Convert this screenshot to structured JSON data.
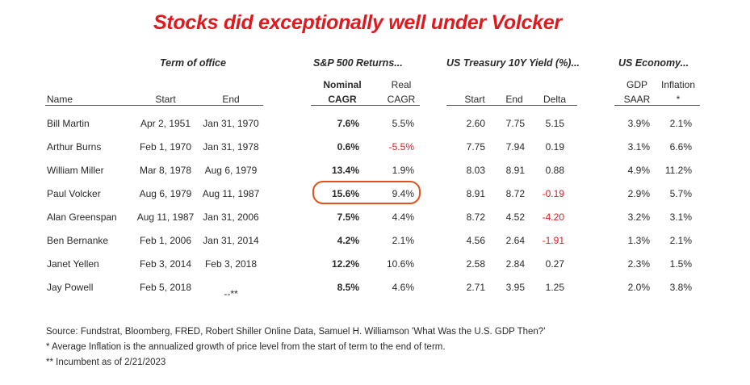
{
  "title": "Stocks did exceptionally well under Volcker",
  "groups": {
    "term": "Term of office",
    "sp500": "S&P 500 Returns...",
    "treasury": "US Treasury 10Y Yield (%)...",
    "economy": "US Economy..."
  },
  "headers": {
    "name": "Name",
    "start": "Start",
    "end": "End",
    "nominal_1": "Nominal",
    "nominal_2": "CAGR",
    "real_1": "Real",
    "real_2": "CAGR",
    "t_start": "Start",
    "t_end": "End",
    "t_delta": "Delta",
    "gdp_1": "GDP",
    "gdp_2": "SAAR",
    "infl_1": "Inflation",
    "infl_2": "*"
  },
  "rows": [
    {
      "name": "Bill Martin",
      "start": "Apr 2, 1951",
      "end": "Jan 31, 1970",
      "nominal": "7.6%",
      "real": "5.5%",
      "ty_start": "2.60",
      "ty_end": "7.75",
      "delta": "5.15",
      "gdp": "3.9%",
      "inflation": "2.1%"
    },
    {
      "name": "Arthur Burns",
      "start": "Feb 1, 1970",
      "end": "Jan 31, 1978",
      "nominal": "0.6%",
      "real": "-5.5%",
      "ty_start": "7.75",
      "ty_end": "7.94",
      "delta": "0.19",
      "gdp": "3.1%",
      "inflation": "6.6%"
    },
    {
      "name": "William Miller",
      "start": "Mar 8, 1978",
      "end": "Aug 6, 1979",
      "nominal": "13.4%",
      "real": "1.9%",
      "ty_start": "8.03",
      "ty_end": "8.91",
      "delta": "0.88",
      "gdp": "4.9%",
      "inflation": "11.2%"
    },
    {
      "name": "Paul Volcker",
      "start": "Aug 6, 1979",
      "end": "Aug 11, 1987",
      "nominal": "15.6%",
      "real": "9.4%",
      "ty_start": "8.91",
      "ty_end": "8.72",
      "delta": "-0.19",
      "gdp": "2.9%",
      "inflation": "5.7%"
    },
    {
      "name": "Alan Greenspan",
      "start": "Aug 11, 1987",
      "end": "Jan 31, 2006",
      "nominal": "7.5%",
      "real": "4.4%",
      "ty_start": "8.72",
      "ty_end": "4.52",
      "delta": "-4.20",
      "gdp": "3.2%",
      "inflation": "3.1%"
    },
    {
      "name": "Ben Bernanke",
      "start": "Feb 1, 2006",
      "end": "Jan 31, 2014",
      "nominal": "4.2%",
      "real": "2.1%",
      "ty_start": "4.56",
      "ty_end": "2.64",
      "delta": "-1.91",
      "gdp": "1.3%",
      "inflation": "2.1%"
    },
    {
      "name": "Janet Yellen",
      "start": "Feb 3, 2014",
      "end": "Feb 3, 2018",
      "nominal": "12.2%",
      "real": "10.6%",
      "ty_start": "2.58",
      "ty_end": "2.84",
      "delta": "0.27",
      "gdp": "2.3%",
      "inflation": "1.5%"
    },
    {
      "name": "Jay Powell",
      "start": "Feb 5, 2018",
      "end": "--**",
      "nominal": "8.5%",
      "real": "4.6%",
      "ty_start": "2.71",
      "ty_end": "3.95",
      "delta": "1.25",
      "gdp": "2.0%",
      "inflation": "3.8%"
    }
  ],
  "footnotes": [
    "Source: Fundstrat, Bloomberg, FRED, Robert Shiller Online Data, Samuel H. Williamson 'What Was the U.S. GDP Then?'",
    "* Average Inflation is the annualized growth of price level from the start of term to the end of term.",
    "** Incumbent as of 2/21/2023"
  ],
  "colors": {
    "title": "#e0191f",
    "negative": "#e0191f",
    "highlight": "#e0521a"
  }
}
